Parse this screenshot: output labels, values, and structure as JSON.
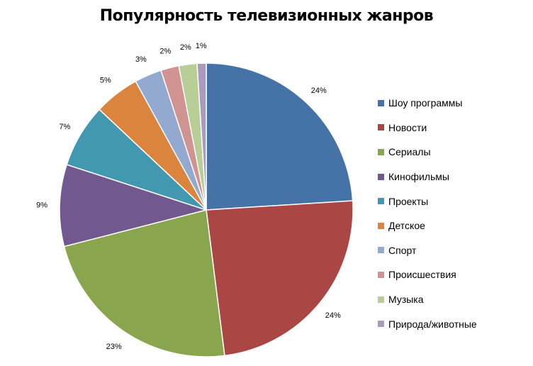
{
  "chart_data": {
    "type": "pie",
    "title": "Популярность телевизионных жанров",
    "categories": [
      "Шоу программы",
      "Новости",
      "Сериалы",
      "Кинофильмы",
      "Проекты",
      "Детское",
      "Спорт",
      "Происшествия",
      "Музыка",
      "Природа/животные"
    ],
    "values": [
      24,
      24,
      23,
      9,
      7,
      5,
      3,
      2,
      2,
      1
    ],
    "data_labels": [
      "24%",
      "24%",
      "23%",
      "9%",
      "7%",
      "5%",
      "3%",
      "2%",
      "2%",
      "1%"
    ],
    "colors": [
      "#4572A7",
      "#AA4643",
      "#89A54E",
      "#71588F",
      "#4198AF",
      "#DB843D",
      "#93A9CF",
      "#D19392",
      "#B9CD96",
      "#A99BBD"
    ],
    "legend_position": "right",
    "start": "12 o'clock",
    "direction": "clockwise"
  }
}
